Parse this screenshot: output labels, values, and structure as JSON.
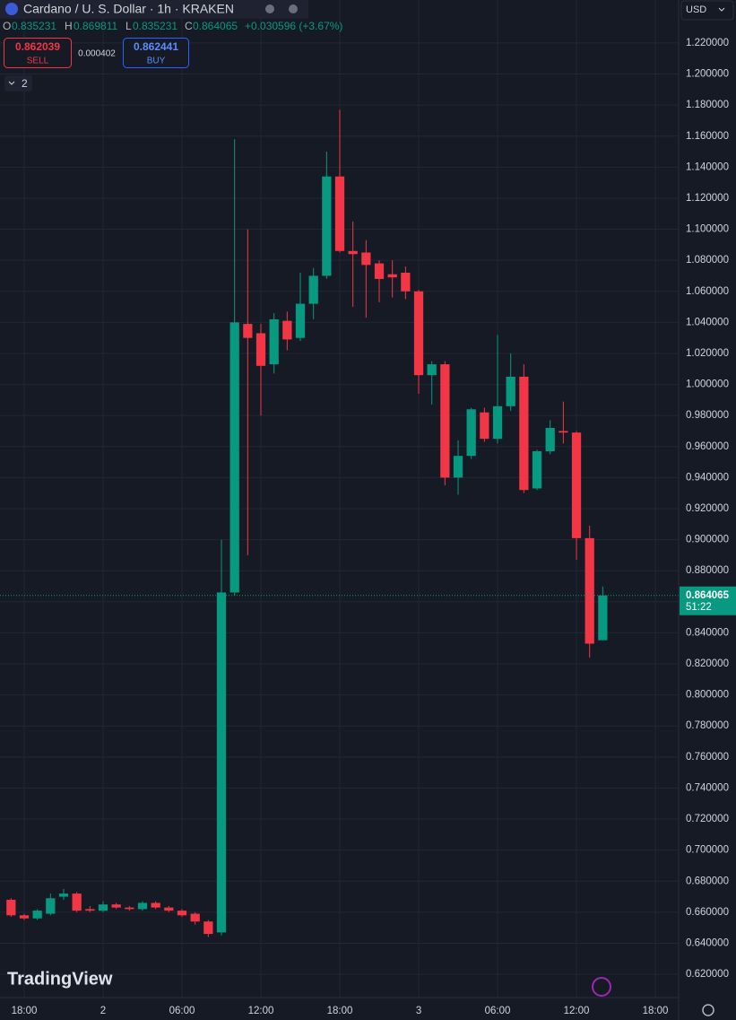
{
  "header": {
    "symbol": "Cardano / U. S. Dollar · 1h · KRAKEN",
    "o_label": "O",
    "o": "0.835231",
    "h_label": "H",
    "h": "0.869811",
    "l_label": "L",
    "l": "0.835231",
    "c_label": "C",
    "c": "0.864065",
    "change": "+0.030596 (+3.67%)",
    "sell_price": "0.862039",
    "sell_label": "SELL",
    "spread": "0.000402",
    "buy_price": "0.862441",
    "buy_label": "BUY",
    "indicators": "2",
    "currency": "USD",
    "logo": "TradingView"
  },
  "chart_data": {
    "type": "candlestick",
    "x": [
      -1,
      0,
      1,
      2,
      3,
      4,
      5,
      6,
      7,
      8,
      9,
      10,
      11,
      12,
      13,
      14,
      15,
      16,
      17,
      18,
      19,
      20,
      21,
      22,
      23,
      24,
      25,
      26,
      27,
      28,
      29,
      30,
      31,
      32,
      33,
      34,
      35,
      36,
      37,
      38,
      39,
      40,
      41,
      42,
      43,
      44
    ],
    "open": [
      0.668,
      0.658,
      0.656,
      0.659,
      0.67,
      0.672,
      0.662,
      0.661,
      0.665,
      0.663,
      0.662,
      0.666,
      0.663,
      0.661,
      0.659,
      0.654,
      0.647,
      0.866,
      1.039,
      1.033,
      1.013,
      1.041,
      1.03,
      1.052,
      1.07,
      1.134,
      1.086,
      1.085,
      1.078,
      1.071,
      1.072,
      1.06,
      1.006,
      1.013,
      0.94,
      0.954,
      0.982,
      0.965,
      0.986,
      1.005,
      0.933,
      0.957,
      0.97,
      0.969,
      0.901,
      0.835231
    ],
    "high": [
      0.669,
      0.659,
      0.662,
      0.672,
      0.675,
      0.673,
      0.664,
      0.667,
      0.666,
      0.664,
      0.667,
      0.667,
      0.664,
      0.662,
      0.66,
      0.655,
      0.9,
      1.158,
      1.1,
      1.039,
      1.046,
      1.047,
      1.072,
      1.075,
      1.15,
      1.177,
      1.105,
      1.093,
      1.08,
      1.08,
      1.076,
      1.061,
      1.015,
      1.015,
      0.964,
      0.985,
      0.985,
      1.032,
      1.02,
      1.013,
      0.958,
      0.977,
      0.989,
      0.97,
      0.909,
      0.869811
    ],
    "low": [
      0.657,
      0.655,
      0.655,
      0.658,
      0.668,
      0.66,
      0.66,
      0.66,
      0.662,
      0.661,
      0.661,
      0.662,
      0.66,
      0.657,
      0.652,
      0.644,
      0.645,
      0.864,
      0.89,
      0.98,
      1.007,
      1.022,
      1.028,
      1.042,
      1.068,
      1.085,
      1.05,
      1.043,
      1.053,
      1.056,
      1.055,
      0.994,
      0.987,
      0.935,
      0.929,
      0.952,
      0.963,
      0.962,
      0.983,
      0.93,
      0.932,
      0.955,
      0.962,
      0.887,
      0.824,
      0.835231
    ],
    "close": [
      0.658,
      0.656,
      0.661,
      0.669,
      0.672,
      0.661,
      0.661,
      0.665,
      0.663,
      0.662,
      0.666,
      0.663,
      0.661,
      0.658,
      0.654,
      0.646,
      0.866,
      1.04,
      1.03,
      1.012,
      1.042,
      1.029,
      1.052,
      1.07,
      1.134,
      1.086,
      1.084,
      1.077,
      1.068,
      1.069,
      1.06,
      1.006,
      1.013,
      0.94,
      0.954,
      0.984,
      0.965,
      0.986,
      1.005,
      0.932,
      0.957,
      0.972,
      0.969,
      0.901,
      0.833,
      0.864065
    ],
    "up_color": "#089981",
    "down_color": "#f23645",
    "xlim": [
      -1.84,
      49.77
    ],
    "ylim": [
      0.605,
      1.2477
    ],
    "xticks": [
      {
        "value": 0,
        "label": "18:00"
      },
      {
        "value": 6,
        "label": "2"
      },
      {
        "value": 12,
        "label": "06:00"
      },
      {
        "value": 18,
        "label": "12:00"
      },
      {
        "value": 24,
        "label": "18:00"
      },
      {
        "value": 30,
        "label": "3"
      },
      {
        "value": 36,
        "label": "06:00"
      },
      {
        "value": 42,
        "label": "12:00"
      },
      {
        "value": 48,
        "label": "18:00"
      }
    ],
    "yticks": [
      {
        "value": 0.62,
        "label": "0.620000"
      },
      {
        "value": 0.64,
        "label": "0.640000"
      },
      {
        "value": 0.66,
        "label": "0.660000"
      },
      {
        "value": 0.68,
        "label": "0.680000"
      },
      {
        "value": 0.7,
        "label": "0.700000"
      },
      {
        "value": 0.72,
        "label": "0.720000"
      },
      {
        "value": 0.74,
        "label": "0.740000"
      },
      {
        "value": 0.76,
        "label": "0.760000"
      },
      {
        "value": 0.78,
        "label": "0.780000"
      },
      {
        "value": 0.8,
        "label": "0.800000"
      },
      {
        "value": 0.82,
        "label": "0.820000"
      },
      {
        "value": 0.84,
        "label": "0.840000"
      },
      {
        "value": 0.86,
        "label": "0.860000"
      },
      {
        "value": 0.88,
        "label": "0.880000"
      },
      {
        "value": 0.9,
        "label": "0.900000"
      },
      {
        "value": 0.92,
        "label": "0.920000"
      },
      {
        "value": 0.94,
        "label": "0.940000"
      },
      {
        "value": 0.96,
        "label": "0.960000"
      },
      {
        "value": 0.98,
        "label": "0.980000"
      },
      {
        "value": 1.0,
        "label": "1.000000"
      },
      {
        "value": 1.02,
        "label": "1.020000"
      },
      {
        "value": 1.04,
        "label": "1.040000"
      },
      {
        "value": 1.06,
        "label": "1.060000"
      },
      {
        "value": 1.08,
        "label": "1.080000"
      },
      {
        "value": 1.1,
        "label": "1.100000"
      },
      {
        "value": 1.12,
        "label": "1.120000"
      },
      {
        "value": 1.14,
        "label": "1.140000"
      },
      {
        "value": 1.16,
        "label": "1.160000"
      },
      {
        "value": 1.18,
        "label": "1.180000"
      },
      {
        "value": 1.2,
        "label": "1.200000"
      },
      {
        "value": 1.22,
        "label": "1.220000"
      }
    ],
    "grid": true,
    "last_price": {
      "value": 0.864065,
      "label": "0.864065"
    },
    "countdown": "51:22"
  }
}
